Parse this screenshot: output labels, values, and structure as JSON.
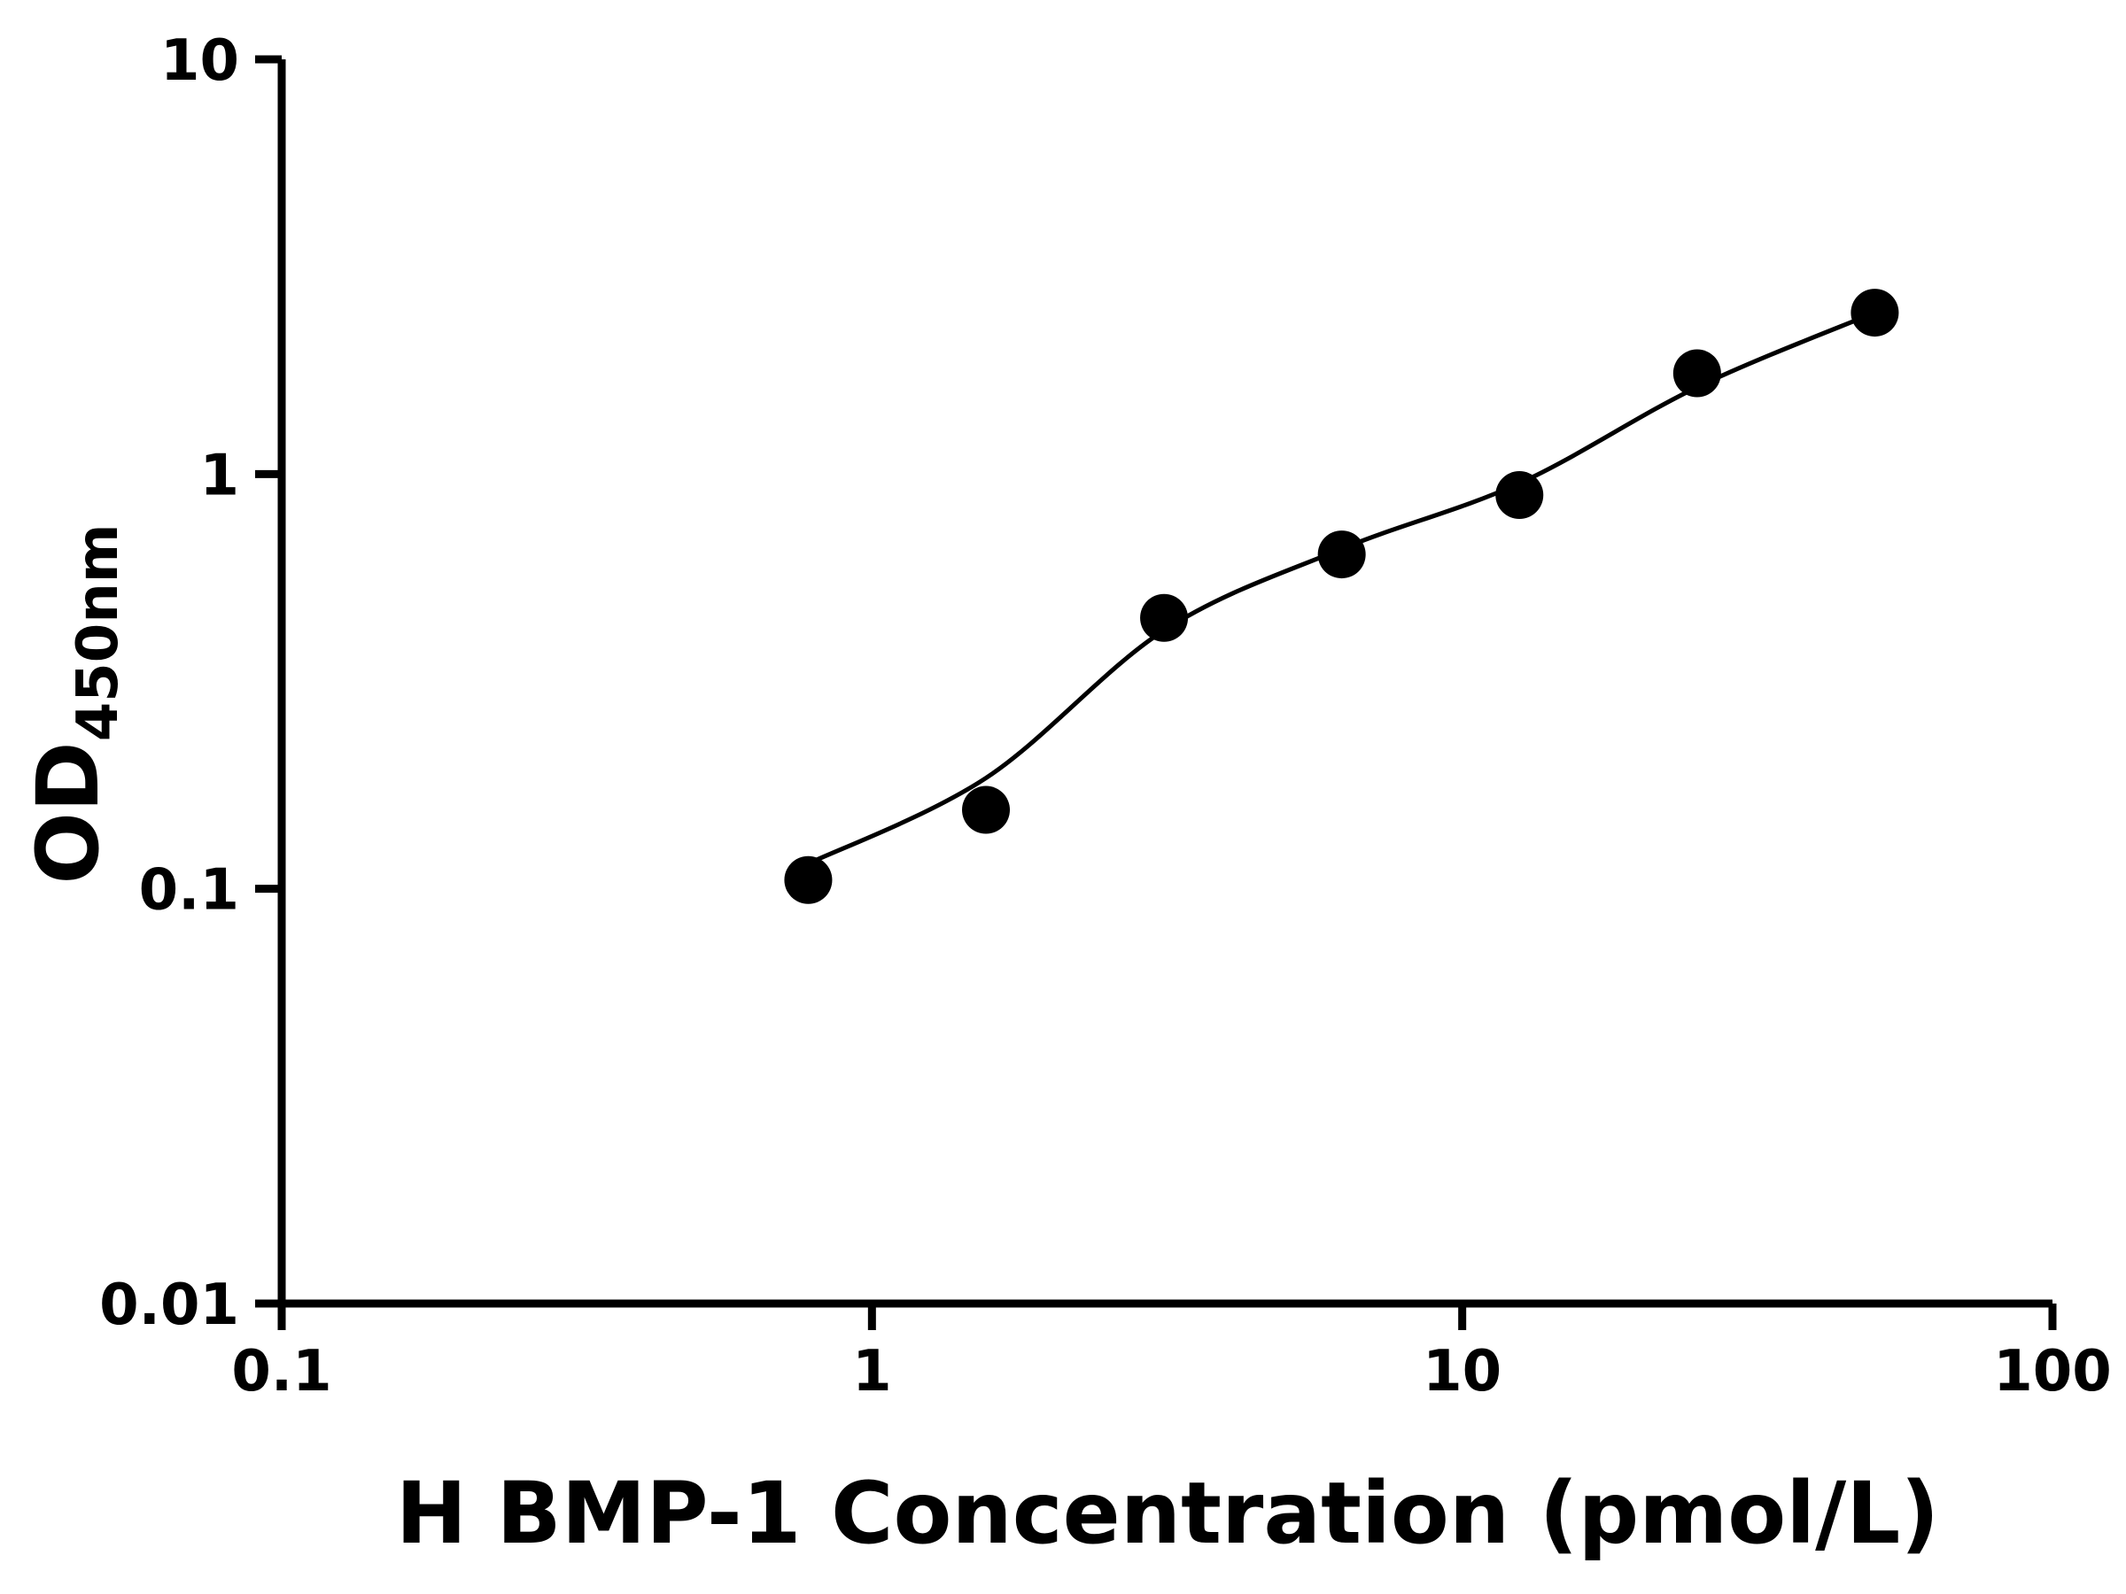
{
  "figure": {
    "background": "#ffffff"
  },
  "chart_data": {
    "type": "scatter",
    "title": "",
    "xlabel": "H BMP-1 Concentration (pmol/L)",
    "ylabel_main": "OD",
    "ylabel_sub": "450nm",
    "x_scale": "log",
    "y_scale": "log",
    "xlim": [
      0.1,
      100
    ],
    "ylim": [
      0.01,
      10
    ],
    "x_ticks": [
      0.1,
      1,
      10,
      100
    ],
    "x_tick_labels": [
      "0.1",
      "1",
      "10",
      "100"
    ],
    "y_ticks": [
      0.01,
      0.1,
      1,
      10
    ],
    "y_tick_labels": [
      "0.01",
      "0.1",
      "1",
      "10"
    ],
    "grid": false,
    "legend": "none",
    "series": [
      {
        "marker": "filled-circle",
        "marker_radius": 27,
        "x": [
          0.78,
          1.56,
          3.125,
          6.25,
          12.5,
          25,
          50
        ],
        "y": [
          0.105,
          0.155,
          0.45,
          0.64,
          0.89,
          1.75,
          2.45
        ]
      }
    ],
    "fit_curve": {
      "x": [
        0.78,
        1.56,
        3.125,
        6.25,
        12.5,
        25,
        50
      ],
      "y": [
        0.115,
        0.185,
        0.42,
        0.66,
        0.95,
        1.62,
        2.45
      ]
    },
    "colors": {
      "points": "#000000",
      "line": "#000000",
      "axis": "#000000",
      "text": "#000000",
      "background": "#ffffff"
    }
  }
}
